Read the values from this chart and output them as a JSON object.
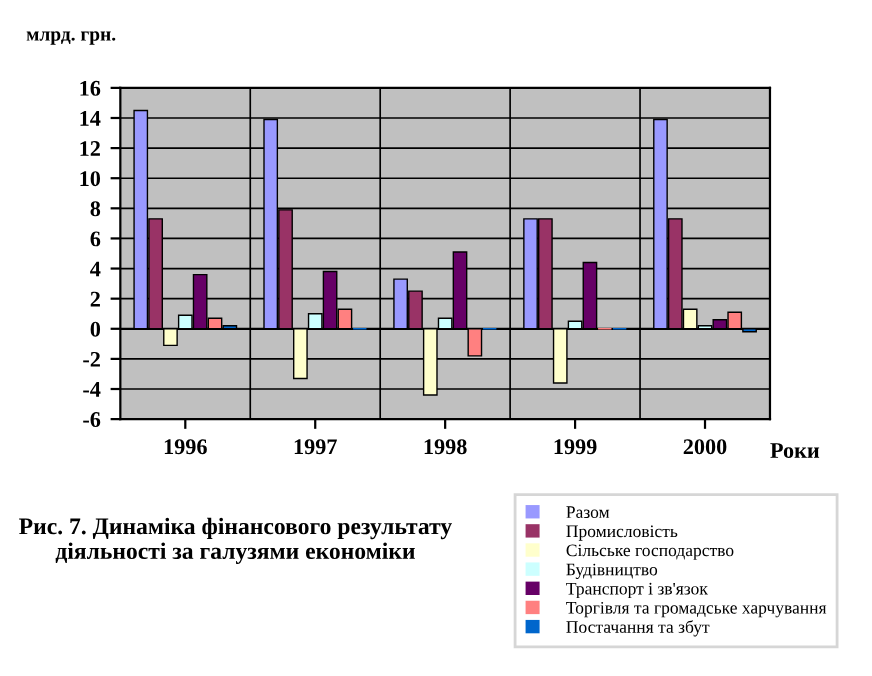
{
  "chart_data": {
    "type": "bar",
    "title": "Рис. 7. Динаміка фінансового результату діяльності за галузями економіки",
    "ylabel": "млрд. грн.",
    "xlabel": "Роки",
    "categories": [
      "1996",
      "1997",
      "1998",
      "1999",
      "2000"
    ],
    "series": [
      {
        "name": "Разом",
        "color": "#9999ff",
        "values": [
          14.5,
          13.9,
          3.3,
          7.3,
          13.9
        ]
      },
      {
        "name": "Промисловість",
        "color": "#993366",
        "values": [
          7.3,
          7.9,
          2.5,
          7.3,
          7.3
        ]
      },
      {
        "name": "Сільське господарство",
        "color": "#ffffcc",
        "values": [
          -1.1,
          -3.3,
          -4.4,
          -3.6,
          1.3
        ]
      },
      {
        "name": "Будівництво",
        "color": "#ccffff",
        "values": [
          0.9,
          1.0,
          0.7,
          0.5,
          0.2
        ]
      },
      {
        "name": "Транспорт і зв'язок",
        "color": "#660066",
        "values": [
          3.6,
          3.8,
          5.1,
          4.4,
          0.6
        ]
      },
      {
        "name": "Торгівля та громадське харчування",
        "color": "#ff8080",
        "values": [
          0.7,
          1.3,
          -1.8,
          0.0,
          1.1
        ]
      },
      {
        "name": "Постачання та збут",
        "color": "#0066cc",
        "values": [
          0.2,
          0.0,
          0.0,
          0.0,
          -0.2
        ]
      }
    ],
    "ylim": [
      -6,
      16
    ],
    "yticks": [
      -6,
      -4,
      -2,
      0,
      2,
      4,
      6,
      8,
      10,
      12,
      14,
      16
    ],
    "grid": "y",
    "legend": "bottom right"
  }
}
